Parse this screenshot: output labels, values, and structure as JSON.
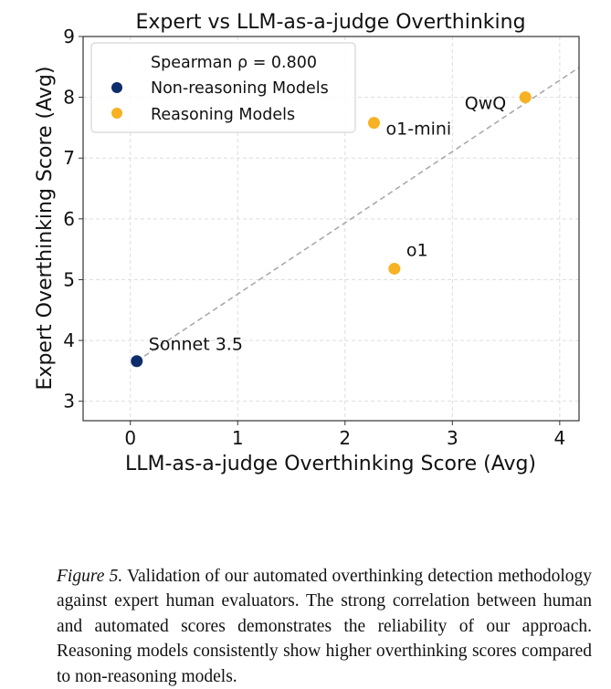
{
  "chart_data": {
    "type": "scatter",
    "title": "Expert vs LLM-as-a-judge Overthinking",
    "xlabel": "LLM-as-a-judge Overthinking Score (Avg)",
    "ylabel": "Expert Overthinking Score (Avg)",
    "xlim": [
      -0.44,
      4.18
    ],
    "ylim": [
      2.68,
      9
    ],
    "xticks": [
      0,
      1,
      2,
      3,
      4
    ],
    "yticks": [
      3,
      4,
      5,
      6,
      7,
      8,
      9
    ],
    "grid": true,
    "legend": {
      "placement": "top-left",
      "title": "Spearman ρ = 0.800",
      "entries": [
        {
          "label": "Non-reasoning Models",
          "color": "#0d2c6c"
        },
        {
          "label": "Reasoning Models",
          "color": "#f6b222"
        }
      ]
    },
    "series": [
      {
        "name": "Non-reasoning Models",
        "color": "#0d2c6c",
        "points": [
          {
            "label": "Sonnet 3.5",
            "x": 0.06,
            "y": 3.66
          }
        ]
      },
      {
        "name": "Reasoning Models",
        "color": "#f6b222",
        "points": [
          {
            "label": "o1-mini",
            "x": 2.27,
            "y": 7.58
          },
          {
            "label": "o1",
            "x": 2.46,
            "y": 5.18
          },
          {
            "label": "QwQ",
            "x": 3.68,
            "y": 8.0
          }
        ]
      }
    ],
    "trend_line": {
      "style": "dashed",
      "color": "#aaaaaa",
      "x": [
        0.06,
        4.18
      ],
      "y": [
        3.66,
        8.49
      ]
    }
  },
  "caption": {
    "label": "Figure 5.",
    "text": "Validation of our automated overthinking detection methodology against expert human evaluators. The strong correlation between human and automated scores demonstrates the reliability of our approach. Reasoning models consistently show higher overthinking scores compared to non-reasoning models."
  }
}
